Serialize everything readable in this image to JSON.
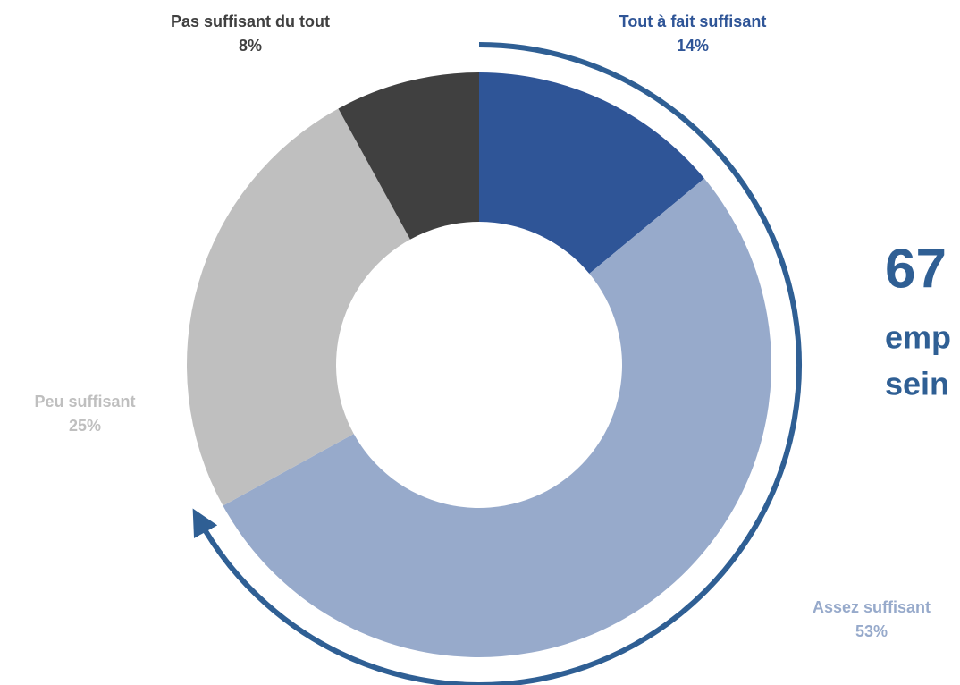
{
  "chart_data": {
    "type": "pie",
    "categories": [
      "Tout à fait suffisant",
      "Assez suffisant",
      "Peu suffisant",
      "Pas suffisant du tout"
    ],
    "values": [
      14,
      53,
      25,
      8
    ],
    "value_labels": [
      "14%",
      "53%",
      "25%",
      "8%"
    ],
    "colors": [
      "#2f5597",
      "#97aacb",
      "#bfbfbf",
      "#404040"
    ],
    "annotations": [
      "67",
      "emp",
      "sein"
    ]
  }
}
